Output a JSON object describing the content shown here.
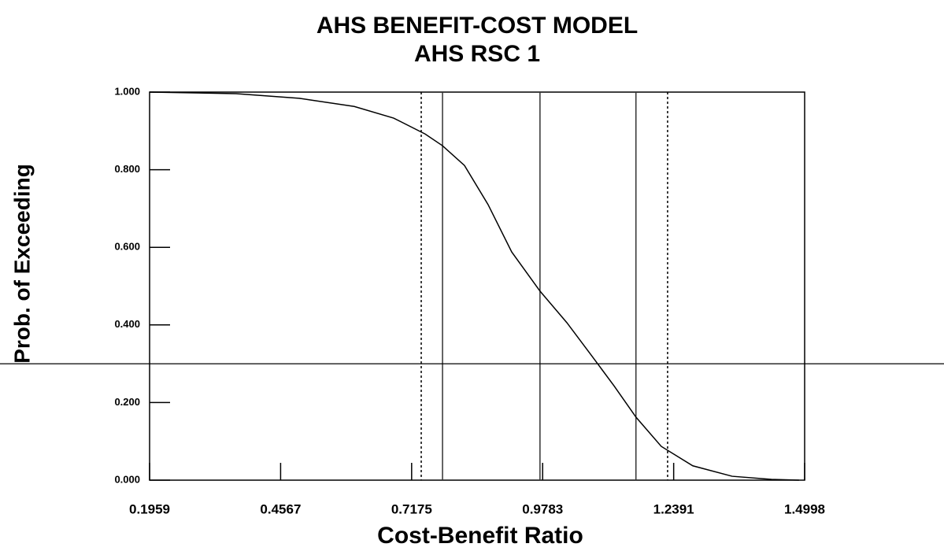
{
  "chart_data": {
    "type": "line",
    "title": "AHS BENEFIT-COST MODEL",
    "subtitle": "AHS RSC 1",
    "xlabel": "Cost-Benefit Ratio",
    "ylabel": "Prob. of Exceeding",
    "x": [
      0.1959,
      0.3683,
      0.4936,
      0.6033,
      0.6817,
      0.7444,
      0.7788,
      0.8227,
      0.8697,
      0.9167,
      0.9731,
      1.0264,
      1.0734,
      1.1204,
      1.1643,
      1.2144,
      1.2771,
      1.3555,
      1.4338,
      1.4886
    ],
    "values": [
      1.0,
      0.996,
      0.984,
      0.963,
      0.933,
      0.892,
      0.862,
      0.811,
      0.71,
      0.588,
      0.487,
      0.406,
      0.325,
      0.243,
      0.162,
      0.087,
      0.037,
      0.01,
      0.002,
      0.0
    ],
    "color": "#000000",
    "xlim": [
      0.1959,
      1.4998
    ],
    "ylim": [
      0,
      1
    ],
    "xticks": [
      0.1959,
      0.4567,
      0.7175,
      0.9783,
      1.2391,
      1.4998
    ],
    "yticks": [
      {
        "value": 0,
        "label": "0.000"
      },
      {
        "value": 0.2,
        "label": "0.200"
      },
      {
        "value": 0.4,
        "label": "0.400"
      },
      {
        "value": 0.6,
        "label": "0.600"
      },
      {
        "value": 0.8,
        "label": "0.800"
      },
      {
        "value": 1,
        "label": "1.000"
      }
    ],
    "solid_lines": [
      0.779,
      0.973,
      1.164
    ],
    "dotted_lines": [
      0.7366,
      1.227
    ],
    "hline": 0.3
  }
}
